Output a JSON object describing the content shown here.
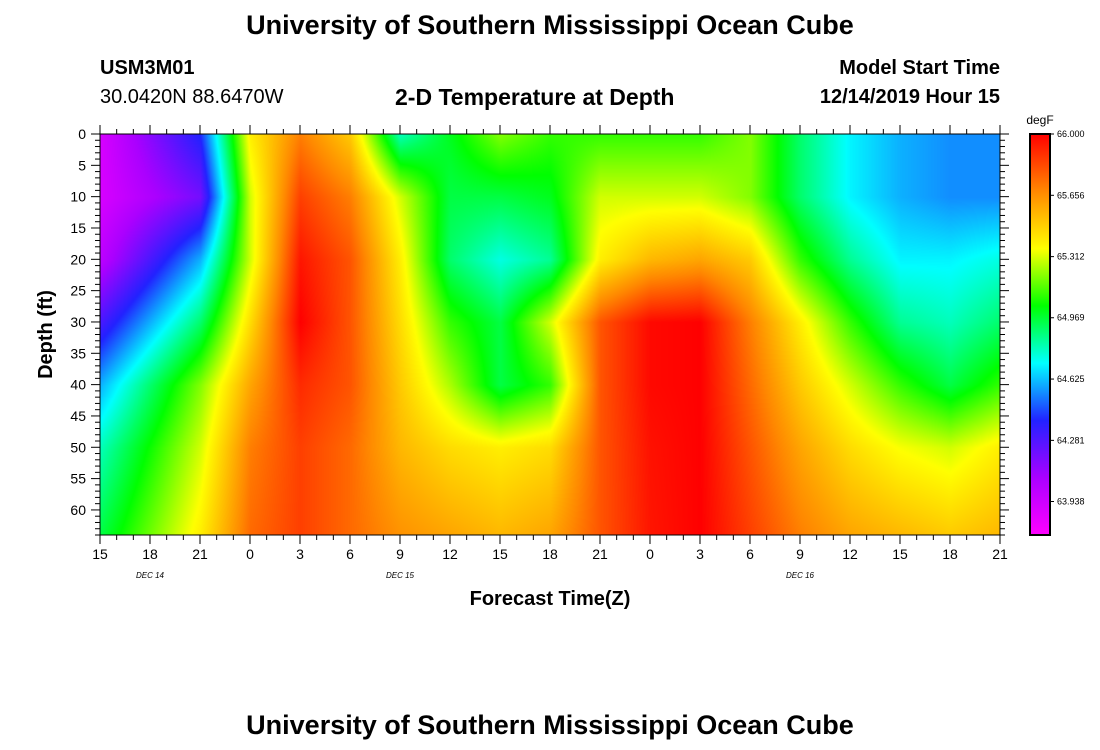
{
  "page": {
    "top_title": "University of Southern Mississippi Ocean Cube",
    "bottom_title": "University of Southern Mississippi Ocean Cube",
    "station_id": "USM3M01",
    "station_coords": "30.0420N 88.6470W",
    "plot_title": "2-D Temperature at Depth",
    "model_start_label": "Model Start Time",
    "model_start_value": "12/14/2019 Hour 15"
  },
  "chart_data": {
    "type": "heatmap",
    "title": "2-D Temperature at Depth",
    "xlabel": "Forecast Time(Z)",
    "ylabel": "Depth (ft)",
    "x_tick_labels": [
      "15",
      "18",
      "21",
      "0",
      "3",
      "6",
      "9",
      "12",
      "15",
      "18",
      "21",
      "0",
      "3",
      "6",
      "9",
      "12",
      "15",
      "18",
      "21"
    ],
    "date_labels": [
      "DEC 14",
      "DEC 15",
      "DEC 16"
    ],
    "x_hours": [
      0,
      54
    ],
    "y_ticks": [
      0,
      5,
      10,
      15,
      20,
      25,
      30,
      35,
      40,
      45,
      50,
      55,
      60
    ],
    "ylim": [
      0,
      64
    ],
    "colorbar": {
      "unit": "degF",
      "labels": [
        "66.000",
        "65.656",
        "65.312",
        "64.969",
        "64.625",
        "64.281",
        "63.938"
      ],
      "range": [
        63.75,
        66.0
      ],
      "colors": [
        "#ff00ff",
        "#aa00ff",
        "#2222ff",
        "#00ffff",
        "#00ff00",
        "#ffff00",
        "#ff8800",
        "#ff0000"
      ]
    },
    "time_hours": [
      0,
      6,
      9,
      12,
      15,
      18,
      21,
      24,
      27,
      30,
      33,
      36,
      39,
      42,
      45,
      48,
      51,
      54
    ],
    "depths_ft": [
      0,
      10,
      20,
      30,
      40,
      50,
      64
    ],
    "values_degF": [
      [
        63.9,
        64.4,
        65.4,
        65.7,
        65.5,
        64.8,
        65.0,
        65.2,
        65.1,
        65.1,
        65.1,
        65.1,
        65.2,
        64.9,
        64.7,
        64.6,
        64.55,
        64.55
      ],
      [
        63.9,
        64.2,
        65.3,
        65.85,
        65.7,
        65.3,
        64.95,
        64.95,
        65.0,
        65.3,
        65.3,
        65.3,
        65.2,
        64.9,
        64.7,
        64.6,
        64.55,
        64.55
      ],
      [
        64.0,
        64.6,
        65.3,
        65.95,
        65.8,
        65.4,
        64.9,
        64.75,
        64.85,
        65.4,
        65.55,
        65.6,
        65.5,
        65.1,
        64.85,
        64.7,
        64.7,
        64.75
      ],
      [
        64.3,
        64.9,
        65.45,
        66.0,
        65.8,
        65.45,
        65.1,
        64.95,
        65.3,
        65.8,
        65.98,
        66.0,
        65.7,
        65.4,
        65.1,
        64.85,
        64.8,
        64.9
      ],
      [
        64.6,
        65.2,
        65.6,
        65.9,
        65.8,
        65.5,
        65.25,
        64.95,
        65.1,
        65.8,
        65.98,
        66.0,
        65.75,
        65.5,
        65.3,
        65.1,
        64.95,
        65.1
      ],
      [
        64.8,
        65.3,
        65.7,
        65.85,
        65.75,
        65.55,
        65.45,
        65.4,
        65.45,
        65.8,
        65.96,
        66.0,
        65.8,
        65.6,
        65.45,
        65.35,
        65.3,
        65.4
      ],
      [
        64.95,
        65.4,
        65.75,
        65.85,
        65.75,
        65.65,
        65.6,
        65.55,
        65.6,
        65.8,
        65.95,
        66.0,
        65.85,
        65.7,
        65.6,
        65.55,
        65.5,
        65.55
      ]
    ]
  }
}
